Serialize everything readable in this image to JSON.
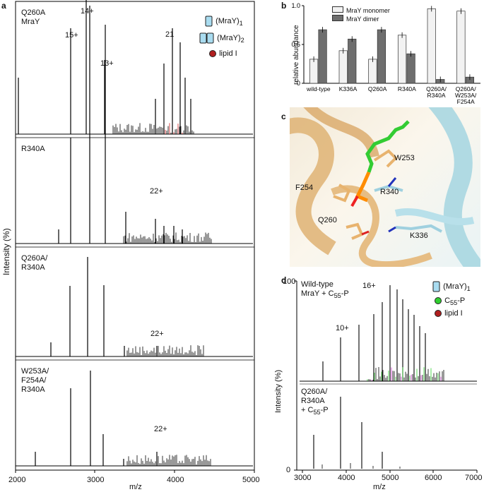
{
  "panel_a": {
    "letter": "a",
    "ylabel": "Intensity (%)",
    "xlabel": "m/z",
    "xticks": [
      "2000",
      "3000",
      "4000",
      "5000"
    ],
    "legend": {
      "monomer": "(MraY)",
      "monomer_sub": "1",
      "dimer": "(MraY)",
      "dimer_sub": "2",
      "lipid": "lipid I"
    },
    "spectra": [
      {
        "title": "Q260A\nMraY",
        "labels": [
          "15+",
          "14+",
          "13+",
          "21"
        ]
      },
      {
        "title": "R340A",
        "labels": [
          "22+"
        ]
      },
      {
        "title": "Q260A/\nR340A",
        "labels": [
          "22+"
        ]
      },
      {
        "title": "W253A/\nF254A/\nR340A",
        "labels": [
          "22+"
        ]
      }
    ]
  },
  "panel_b": {
    "letter": "b",
    "ylabel": "relative abundance",
    "legend": [
      "MraY monomer",
      "MraY dimer"
    ],
    "chart_data": {
      "type": "bar",
      "categories": [
        "wild-type",
        "K336A",
        "Q260A",
        "R340A",
        "Q260A/\nR340A",
        "Q260A/\nW253A/\nF254A"
      ],
      "series": [
        {
          "name": "MraY monomer",
          "values": [
            0.31,
            0.42,
            0.31,
            0.62,
            0.96,
            0.93
          ]
        },
        {
          "name": "MraY dimer",
          "values": [
            0.69,
            0.57,
            0.69,
            0.38,
            0.05,
            0.08
          ]
        }
      ],
      "ylim": [
        0,
        1.0
      ],
      "yticks": [
        "0",
        "0.5",
        "1.0"
      ],
      "colors": {
        "monomer": "#f2f2f2",
        "dimer": "#6e6e6e"
      }
    }
  },
  "panel_c": {
    "letter": "c",
    "residues": [
      "W253",
      "F254",
      "R340",
      "Q260",
      "K336"
    ]
  },
  "panel_d": {
    "letter": "d",
    "ylabel": "Intensity (%)",
    "xlabel": "m/z",
    "xticks": [
      "3000",
      "4000",
      "5000",
      "6000",
      "7000"
    ],
    "ytick_top": "100",
    "ytick_bot": "0",
    "legend": {
      "monomer": "(MraY)",
      "monomer_sub": "1",
      "c55": "C",
      "c55_sub": "55",
      "c55_tail": "-P",
      "lipid": "lipid I"
    },
    "spectra": [
      {
        "title": "Wild-type\nMraY + C",
        "sub": "55",
        "tail": "-P",
        "labels": [
          "16+",
          "10+"
        ]
      },
      {
        "title": "Q260A/\nR340A\n+ C",
        "sub": "55",
        "tail": "-P"
      }
    ]
  }
}
